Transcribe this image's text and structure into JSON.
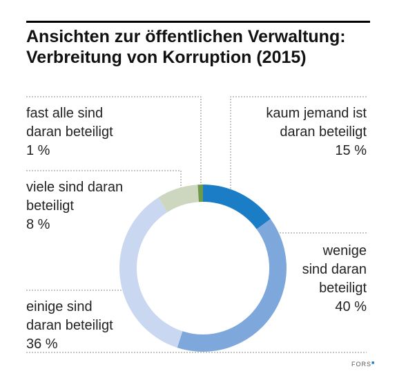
{
  "title_line1": "Ansichten zur öffentlichen Verwaltung:",
  "title_line2": "Verbreitung von Korruption (2015)",
  "chart_data": {
    "type": "pie",
    "donut": true,
    "title": "Ansichten zur öffentlichen Verwaltung: Verbreitung von Korruption (2015)",
    "slices": [
      {
        "label": "kaum jemand ist daran beteiligt",
        "value": 15,
        "color": "#1a7dc6"
      },
      {
        "label": "wenige sind daran beteiligt",
        "value": 40,
        "color": "#7ea8dc"
      },
      {
        "label": "einige sind daran beteiligt",
        "value": 36,
        "color": "#c9d8f0"
      },
      {
        "label": "viele sind daran beteiligt",
        "value": 8,
        "color": "#cdd6bf"
      },
      {
        "label": "fast alle sind daran beteiligt",
        "value": 1,
        "color": "#6f9a4c"
      }
    ]
  },
  "labels": {
    "kaum": {
      "l1": "kaum jemand ist",
      "l2": "daran beteiligt",
      "pct": "15 %"
    },
    "wenige": {
      "l1": "wenige",
      "l2": "sind daran",
      "l3": "beteiligt",
      "pct": "40 %"
    },
    "einige": {
      "l1": "einige sind",
      "l2": "daran beteiligt",
      "pct": "36 %"
    },
    "viele": {
      "l1": "viele sind daran",
      "l2": "beteiligt",
      "pct": "8 %"
    },
    "fast": {
      "l1": "fast alle sind",
      "l2": "daran beteiligt",
      "pct": "1 %"
    }
  },
  "logo": {
    "text": "FORS",
    "mark": "■"
  }
}
